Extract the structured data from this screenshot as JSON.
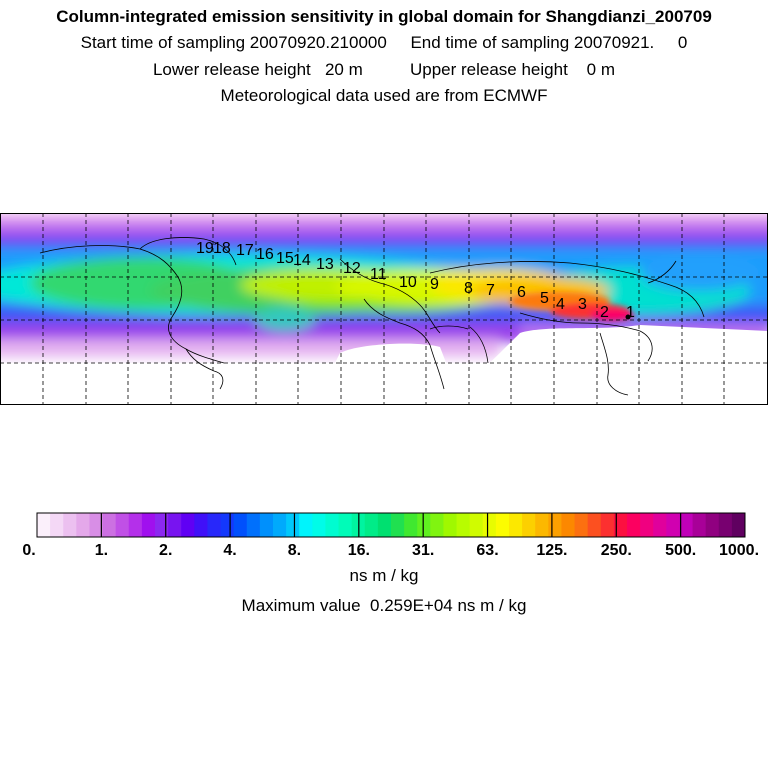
{
  "header": {
    "title": "Column-integrated emission sensitivity in global domain for Shangdianzi_200709",
    "line2": "Start time of sampling 20070920.210000     End time of sampling 20070921.     0",
    "line3": "Lower release height   20 m          Upper release height    0 m",
    "line4": "Meteorological data used are from ECMWF"
  },
  "map": {
    "trajectory_labels": [
      "1",
      "2",
      "3",
      "4",
      "5",
      "6",
      "7",
      "8",
      "9",
      "10",
      "11",
      "12",
      "13",
      "14",
      "15",
      "16",
      "17",
      "18",
      "19"
    ]
  },
  "colorbar": {
    "ticks": [
      "0.",
      "1.",
      "2.",
      "4.",
      "8.",
      "16.",
      "31.",
      "63.",
      "125.",
      "250.",
      "500.",
      "1000."
    ],
    "units": "ns m / kg",
    "colors": [
      "#fbf0fb",
      "#f4d8f6",
      "#ecc0f0",
      "#e4a8ea",
      "#d88ee6",
      "#cc70e2",
      "#c050e6",
      "#b430ea",
      "#a010ee",
      "#8c28f0",
      "#7814f0",
      "#6000f4",
      "#4010f8",
      "#2828fa",
      "#1438fc",
      "#0050fc",
      "#0070fc",
      "#0090fc",
      "#00aafc",
      "#00c8fc",
      "#00f4fc",
      "#00fce8",
      "#00fcd0",
      "#00fcb8",
      "#00f4a0",
      "#00ec88",
      "#00e070",
      "#20e050",
      "#40e830",
      "#60f020",
      "#80f410",
      "#a0f800",
      "#b8fc00",
      "#d0fc00",
      "#e8fc00",
      "#fcfc00",
      "#fce800",
      "#fcd000",
      "#fcb800",
      "#fca000",
      "#fc8800",
      "#fc7010",
      "#fc5020",
      "#fc3030",
      "#fc1040",
      "#fc0060",
      "#f00080",
      "#e0009c",
      "#d000b0",
      "#c000b8",
      "#a80098",
      "#900080",
      "#780070",
      "#600060"
    ],
    "max_text": "Maximum value  0.259E+04 ns m / kg"
  }
}
